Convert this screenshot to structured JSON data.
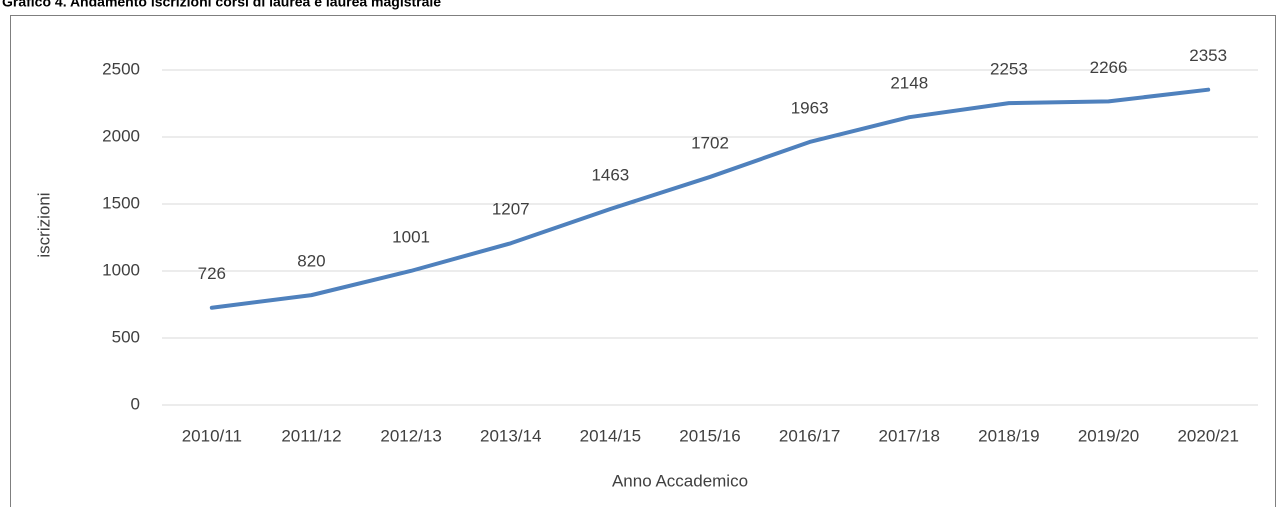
{
  "chart_data": {
    "type": "line",
    "title": "Grafico 4. Andamento iscrizioni corsi di laurea e laurea magistrale",
    "x_label": "Anno Accademico",
    "y_label": "iscrizioni",
    "categories": [
      "2010/11",
      "2011/12",
      "2012/13",
      "2013/14",
      "2014/15",
      "2015/16",
      "2016/17",
      "2017/18",
      "2018/19",
      "2019/20",
      "2020/21"
    ],
    "series": [
      {
        "name": "iscrizioni",
        "color": "#4f81bd",
        "values": [
          726,
          820,
          1001,
          1207,
          1463,
          1702,
          1963,
          2148,
          2253,
          2266,
          2353
        ]
      }
    ],
    "ylim": [
      0,
      2500
    ],
    "yticks": [
      0,
      500,
      1000,
      1500,
      2000,
      2500
    ],
    "grid": true
  }
}
